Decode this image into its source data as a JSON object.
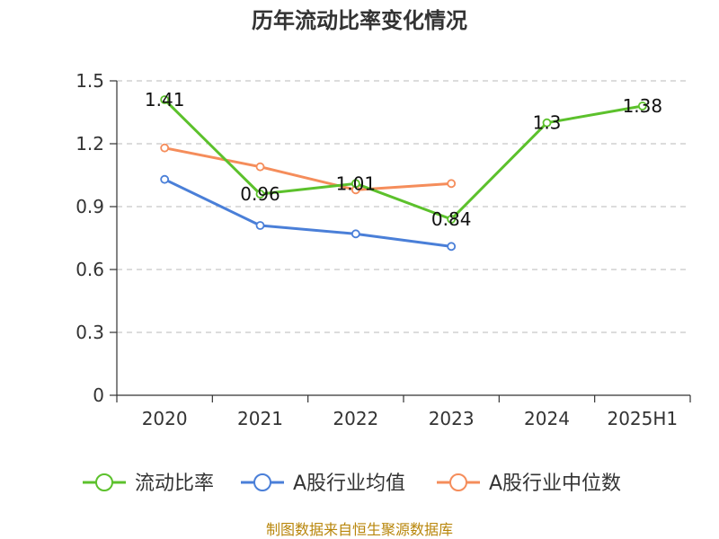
{
  "chart_data": {
    "type": "line",
    "title": "历年流动比率变化情况",
    "categories": [
      "2020",
      "2021",
      "2022",
      "2023",
      "2024",
      "2025H1"
    ],
    "ylim": [
      0,
      1.5
    ],
    "yticks": [
      "0",
      "0.3",
      "0.6",
      "0.9",
      "1.2",
      "1.5"
    ],
    "ytick_values": [
      0,
      0.3,
      0.6,
      0.9,
      1.2,
      1.5
    ],
    "grid": true,
    "legend_position": "bottom",
    "series": [
      {
        "name": "流动比率",
        "color": "#5cc12c",
        "values": [
          1.41,
          0.96,
          1.01,
          0.84,
          1.3,
          1.38
        ],
        "labels": [
          "1.41",
          "0.96",
          "1.01",
          "0.84",
          "1.3",
          "1.38"
        ]
      },
      {
        "name": "A股行业均值",
        "color": "#4a7fd8",
        "values": [
          1.03,
          0.81,
          0.77,
          0.71,
          null,
          null
        ]
      },
      {
        "name": "A股行业中位数",
        "color": "#f58d5b",
        "values": [
          1.18,
          1.09,
          0.98,
          1.01,
          null,
          null
        ]
      }
    ],
    "source": "制图数据来自恒生聚源数据库"
  }
}
